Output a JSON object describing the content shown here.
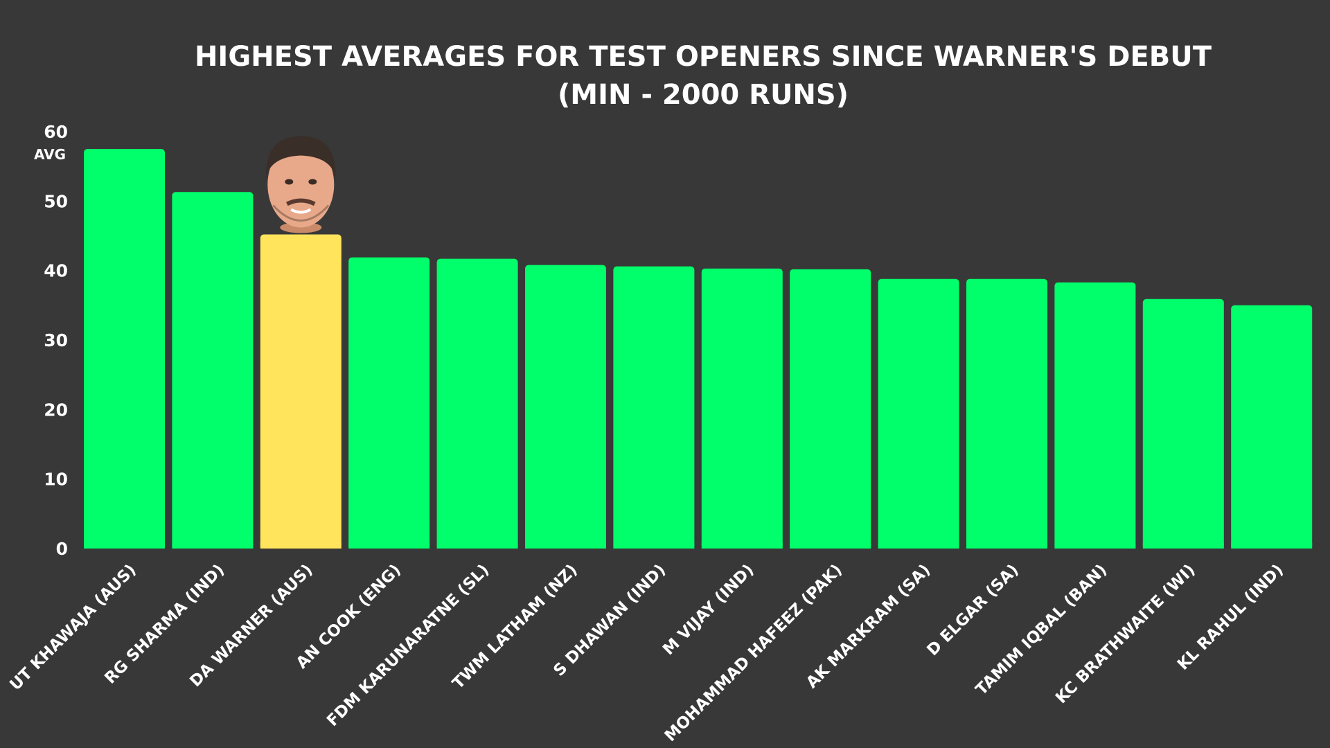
{
  "chart_data": {
    "type": "bar",
    "title": "HIGHEST AVERAGES FOR TEST OPENERS SINCE WARNER'S DEBUT",
    "subtitle": "(MIN - 2000 RUNS)",
    "ylabel": "AVG",
    "xlabel": "",
    "ylim": [
      0,
      60
    ],
    "yticks": [
      0,
      10,
      20,
      30,
      40,
      50,
      60
    ],
    "grid": false,
    "legend": "none",
    "categories": [
      "UT KHAWAJA (AUS)",
      "RG SHARMA (IND)",
      "DA WARNER (AUS)",
      "AN COOK (ENG)",
      "FDM KARUNARATNE (SL)",
      "TWM LATHAM (NZ)",
      "S DHAWAN (IND)",
      "M VIJAY (IND)",
      "MOHAMMAD HAFEEZ (PAK)",
      "AK MARKRAM (SA)",
      "D ELGAR (SA)",
      "TAMIM IQBAL (BAN)",
      "KC BRATHWAITE (WI)",
      "KL RAHUL (IND)"
    ],
    "values": [
      57.5,
      51.3,
      45.2,
      41.9,
      41.7,
      40.8,
      40.6,
      40.3,
      40.2,
      38.8,
      38.8,
      38.3,
      35.9,
      35.0
    ],
    "highlight": "DA WARNER (AUS)",
    "colors": {
      "background": "#383838",
      "bar": "#00FF6A",
      "highlight": "#FFE45C",
      "text": "#FFFFFF"
    }
  }
}
